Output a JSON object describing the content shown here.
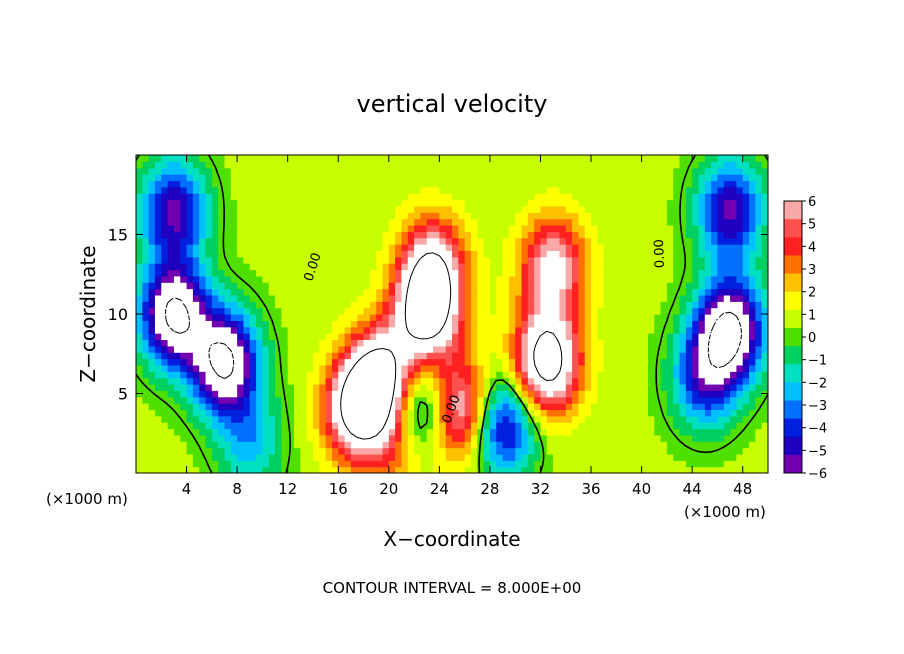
{
  "chart_data": {
    "type": "heatmap",
    "title": "vertical velocity",
    "xlabel": "X−coordinate",
    "ylabel": "Z−coordinate",
    "x_unit_left": "(×1000 m)",
    "x_unit_right": "(×1000 m)",
    "xlim": [
      0,
      50
    ],
    "ylim": [
      0,
      20
    ],
    "xticks": [
      4,
      8,
      12,
      16,
      20,
      24,
      28,
      32,
      36,
      40,
      44,
      48
    ],
    "yticks": [
      5,
      10,
      15
    ],
    "colorbar": {
      "ticks": [
        "6",
        "5",
        "4",
        "3",
        "2",
        "1",
        "0",
        "−1",
        "−2",
        "−3",
        "−4",
        "−5",
        "−6"
      ],
      "range": [
        -6,
        6
      ],
      "colors": [
        "#f9a8a8",
        "#ff5050",
        "#ff2020",
        "#ff7000",
        "#ffc000",
        "#ffff00",
        "#c8ff00",
        "#50e000",
        "#00d060",
        "#00e0c0",
        "#00c0ff",
        "#0070ff",
        "#0020e0",
        "#2000c0",
        "#7000b0"
      ]
    },
    "contour_label": "0.00",
    "footer": "CONTOUR INTERVAL = 8.000E+00",
    "grid": false,
    "features": [
      {
        "x": 3,
        "z": 10,
        "w": -9
      },
      {
        "x": 7,
        "z": 7,
        "w": -9
      },
      {
        "x": 3,
        "z": 16.5,
        "w": -6
      },
      {
        "x": 47,
        "z": 16.5,
        "w": -6
      },
      {
        "x": 47,
        "z": 9,
        "w": -9
      },
      {
        "x": 45,
        "z": 6,
        "w": -5
      },
      {
        "x": 9,
        "z": 2,
        "w": -3
      },
      {
        "x": 23.5,
        "z": 13,
        "w": 6
      },
      {
        "x": 33,
        "z": 13,
        "w": 6
      },
      {
        "x": 32.5,
        "z": 7,
        "w": 9
      },
      {
        "x": 23,
        "z": 10,
        "w": 8
      },
      {
        "x": 17.5,
        "z": 4,
        "w": 8
      },
      {
        "x": 19.5,
        "z": 6,
        "w": 8
      },
      {
        "x": 22.5,
        "z": 4,
        "w": -6
      },
      {
        "x": 25.5,
        "z": 4,
        "w": 7
      },
      {
        "x": 29,
        "z": 3,
        "w": -6
      },
      {
        "x": 21,
        "z": 2,
        "w": 3
      }
    ]
  }
}
